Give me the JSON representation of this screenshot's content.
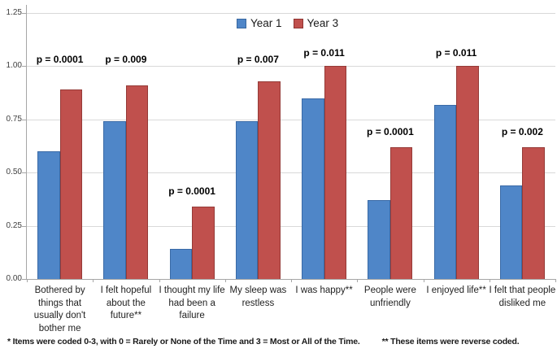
{
  "figure": {
    "background": "#ffffff"
  },
  "colors": {
    "year1_fill": "#4f86c8",
    "year1_border": "#3a6aa6",
    "year3_fill": "#c0504d",
    "year3_border": "#953a37",
    "gridline": "#d9d9d9",
    "axis": "#a6a6a6",
    "tick_label": "#3f3f3f"
  },
  "legend": {
    "items": [
      {
        "label": "Year 1",
        "color": "#4f86c8",
        "border": "#38679f"
      },
      {
        "label": "Year 3",
        "color": "#c0504d",
        "border": "#8f3431"
      }
    ]
  },
  "footnote": {
    "left": "* Items were coded 0-3, with 0 = Rarely or None of the Time and 3 = Most or All of the Time.",
    "right": "** These items were reverse coded."
  },
  "chart_data": {
    "type": "bar",
    "title": "",
    "xlabel": "",
    "ylabel": "",
    "ylim": [
      0,
      1.25
    ],
    "yticks": [
      0,
      0.25,
      0.5,
      0.75,
      1,
      1.25
    ],
    "ytick_labels": [
      "0.00",
      "0.25",
      "0.50",
      "0.75",
      "1.00",
      "1.25"
    ],
    "grid": "horizontal",
    "legend_position": "top-center",
    "categories": [
      "Bothered by things that usually don't bother me",
      "I felt hopeful about the future**",
      "I thought my life had been a failure",
      "My sleep was restless",
      "I was happy**",
      "People were unfriendly",
      "I enjoyed life**",
      "I felt that people disliked me"
    ],
    "category_lines": [
      [
        "Bothered by",
        "things that",
        "usually don't",
        "bother me"
      ],
      [
        "I felt hopeful",
        "about the",
        "future**"
      ],
      [
        "I thought my life",
        "had been a",
        "failure"
      ],
      [
        "My sleep was",
        "restless"
      ],
      [
        "I was happy**"
      ],
      [
        "People were",
        "unfriendly"
      ],
      [
        "I enjoyed life**"
      ],
      [
        "I felt that people",
        "disliked me"
      ]
    ],
    "series": [
      {
        "name": "Year 1",
        "values": [
          0.6,
          0.74,
          0.14,
          0.74,
          0.85,
          0.37,
          0.82,
          0.44
        ]
      },
      {
        "name": "Year 3",
        "values": [
          0.89,
          0.91,
          0.34,
          0.93,
          1.0,
          0.62,
          1.0,
          0.62
        ]
      }
    ],
    "annotations": [
      {
        "text": "p = 0.0001",
        "category_index": 0,
        "y": 1.03
      },
      {
        "text": "p = 0.009",
        "category_index": 1,
        "y": 1.03
      },
      {
        "text": "p = 0.0001",
        "category_index": 2,
        "y": 0.41
      },
      {
        "text": "p = 0.007",
        "category_index": 3,
        "y": 1.03
      },
      {
        "text": "p = 0.011",
        "category_index": 4,
        "y": 1.06
      },
      {
        "text": "p = 0.0001",
        "category_index": 5,
        "y": 0.69
      },
      {
        "text": "p = 0.011",
        "category_index": 6,
        "y": 1.06
      },
      {
        "text": "p = 0.002",
        "category_index": 7,
        "y": 0.69
      }
    ]
  }
}
